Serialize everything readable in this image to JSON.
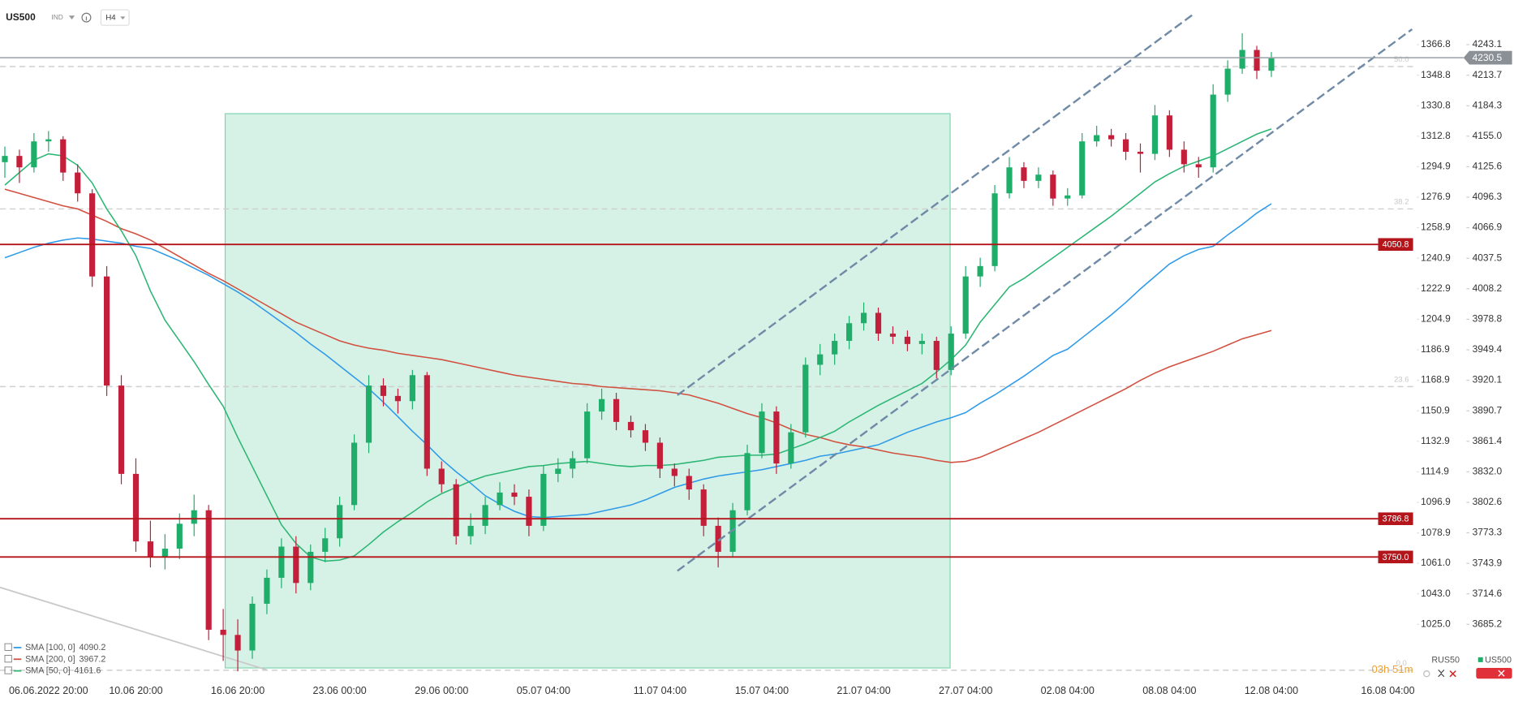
{
  "header": {
    "symbol": "US500",
    "market": "IND",
    "timeframe": "H4"
  },
  "chart_data": {
    "type": "candlestick",
    "categories": [
      null,
      null,
      null,
      "06.06.2022 20:00",
      null,
      null,
      null,
      null,
      null,
      "10.06 20:00",
      null,
      null,
      null,
      null,
      null,
      null,
      "16.06 20:00",
      null,
      null,
      null,
      null,
      null,
      null,
      "23.06 00:00",
      null,
      null,
      null,
      null,
      null,
      null,
      "29.06 00:00",
      null,
      null,
      null,
      null,
      null,
      null,
      "05.07 04:00",
      null,
      null,
      null,
      null,
      null,
      null,
      null,
      "11.07 04:00",
      null,
      null,
      null,
      null,
      null,
      null,
      "15.07 04:00",
      null,
      null,
      null,
      null,
      null,
      null,
      "21.07 04:00",
      null,
      null,
      null,
      null,
      null,
      null,
      "27.07 04:00",
      null,
      null,
      null,
      null,
      null,
      null,
      "02.08 04:00",
      null,
      null,
      null,
      null,
      null,
      null,
      "08.08 04:00",
      null,
      null,
      null,
      null,
      null,
      null,
      "12.08 04:00",
      null,
      null,
      null,
      null,
      null,
      null,
      null,
      "16.08 04:00"
    ],
    "candles": [
      [
        4130,
        4145,
        4115,
        4136
      ],
      [
        4136,
        4142,
        4110,
        4125
      ],
      [
        4125,
        4158,
        4120,
        4150
      ],
      [
        4150,
        4160,
        4140,
        4152
      ],
      [
        4152,
        4155,
        4112,
        4120
      ],
      [
        4120,
        4128,
        4092,
        4100
      ],
      [
        4100,
        4104,
        4010,
        4020
      ],
      [
        4020,
        4030,
        3905,
        3915
      ],
      [
        3915,
        3925,
        3820,
        3830
      ],
      [
        3830,
        3845,
        3755,
        3765
      ],
      [
        3765,
        3785,
        3740,
        3750
      ],
      [
        3750,
        3772,
        3738,
        3758
      ],
      [
        3758,
        3792,
        3748,
        3782
      ],
      [
        3782,
        3810,
        3770,
        3795
      ],
      [
        3795,
        3800,
        3670,
        3680
      ],
      [
        3680,
        3700,
        3650,
        3675
      ],
      [
        3675,
        3690,
        3640,
        3660
      ],
      [
        3660,
        3712,
        3652,
        3705
      ],
      [
        3705,
        3738,
        3695,
        3730
      ],
      [
        3730,
        3768,
        3720,
        3760
      ],
      [
        3760,
        3770,
        3715,
        3725
      ],
      [
        3725,
        3762,
        3718,
        3755
      ],
      [
        3755,
        3778,
        3745,
        3768
      ],
      [
        3768,
        3808,
        3760,
        3800
      ],
      [
        3800,
        3868,
        3795,
        3860
      ],
      [
        3860,
        3925,
        3850,
        3915
      ],
      [
        3915,
        3922,
        3895,
        3905
      ],
      [
        3905,
        3912,
        3888,
        3900
      ],
      [
        3900,
        3930,
        3892,
        3925
      ],
      [
        3925,
        3928,
        3828,
        3835
      ],
      [
        3835,
        3842,
        3812,
        3820
      ],
      [
        3820,
        3825,
        3762,
        3770
      ],
      [
        3770,
        3792,
        3762,
        3780
      ],
      [
        3780,
        3808,
        3772,
        3800
      ],
      [
        3800,
        3822,
        3795,
        3812
      ],
      [
        3812,
        3820,
        3800,
        3808
      ],
      [
        3808,
        3815,
        3770,
        3780
      ],
      [
        3780,
        3838,
        3775,
        3830
      ],
      [
        3830,
        3845,
        3822,
        3835
      ],
      [
        3835,
        3852,
        3826,
        3845
      ],
      [
        3845,
        3898,
        3840,
        3890
      ],
      [
        3890,
        3912,
        3882,
        3902
      ],
      [
        3902,
        3908,
        3872,
        3880
      ],
      [
        3880,
        3886,
        3865,
        3872
      ],
      [
        3872,
        3878,
        3852,
        3860
      ],
      [
        3860,
        3865,
        3826,
        3835
      ],
      [
        3835,
        3840,
        3818,
        3828
      ],
      [
        3828,
        3835,
        3805,
        3815
      ],
      [
        3815,
        3820,
        3770,
        3780
      ],
      [
        3780,
        3788,
        3740,
        3755
      ],
      [
        3755,
        3802,
        3750,
        3795
      ],
      [
        3795,
        3858,
        3790,
        3850
      ],
      [
        3850,
        3898,
        3845,
        3890
      ],
      [
        3890,
        3895,
        3830,
        3840
      ],
      [
        3840,
        3878,
        3835,
        3870
      ],
      [
        3870,
        3942,
        3865,
        3935
      ],
      [
        3935,
        3955,
        3925,
        3945
      ],
      [
        3945,
        3965,
        3935,
        3958
      ],
      [
        3958,
        3982,
        3950,
        3975
      ],
      [
        3975,
        3995,
        3968,
        3985
      ],
      [
        3985,
        3990,
        3958,
        3965
      ],
      [
        3965,
        3972,
        3955,
        3962
      ],
      [
        3962,
        3968,
        3948,
        3955
      ],
      [
        3955,
        3965,
        3945,
        3958
      ],
      [
        3958,
        3962,
        3922,
        3930
      ],
      [
        3930,
        3972,
        3925,
        3965
      ],
      [
        3965,
        4030,
        3960,
        4020
      ],
      [
        4020,
        4038,
        4010,
        4030
      ],
      [
        4030,
        4108,
        4025,
        4100
      ],
      [
        4100,
        4135,
        4095,
        4125
      ],
      [
        4125,
        4130,
        4105,
        4112
      ],
      [
        4112,
        4125,
        4105,
        4118
      ],
      [
        4118,
        4122,
        4088,
        4095
      ],
      [
        4095,
        4105,
        4088,
        4098
      ],
      [
        4098,
        4158,
        4095,
        4150
      ],
      [
        4150,
        4165,
        4145,
        4156
      ],
      [
        4156,
        4162,
        4145,
        4152
      ],
      [
        4152,
        4158,
        4132,
        4140
      ],
      [
        4140,
        4148,
        4120,
        4138
      ],
      [
        4138,
        4185,
        4132,
        4175
      ],
      [
        4175,
        4180,
        4135,
        4142
      ],
      [
        4142,
        4150,
        4120,
        4128
      ],
      [
        4128,
        4135,
        4115,
        4125
      ],
      [
        4125,
        4205,
        4120,
        4195
      ],
      [
        4195,
        4228,
        4188,
        4220
      ],
      [
        4220,
        4254,
        4215,
        4238
      ],
      [
        4238,
        4242,
        4210,
        4218
      ],
      [
        4218,
        4236,
        4212,
        4230
      ],
      null,
      null,
      null,
      null,
      null,
      null,
      null,
      null
    ],
    "up_color": "#1eae6a",
    "down_color": "#c41f3a",
    "ylim": [
      3632,
      4286
    ],
    "yticks": [
      4243.1,
      4213.7,
      4184.3,
      {
        "value": 4155,
        "label": "4155.0"
      },
      4125.6,
      4096.3,
      4066.9,
      4037.5,
      4008.2,
      3978.8,
      3949.4,
      3920.1,
      3890.7,
      3861.4,
      {
        "value": 3832,
        "label": "3832.0"
      },
      3802.6,
      3773.3,
      3743.9,
      3714.6,
      3685.2
    ],
    "y2lim": [
      992.4,
      1393.1
    ],
    "y2ticks": [
      1366.8,
      1348.8,
      1330.8,
      1312.8,
      1294.9,
      1276.9,
      1258.9,
      1240.9,
      1222.9,
      1204.9,
      1186.9,
      1168.9,
      1150.9,
      1132.9,
      1114.9,
      1096.9,
      1078.9,
      {
        "value": 1061,
        "label": "1061.0"
      },
      {
        "value": 1043,
        "label": "1043.0"
      },
      {
        "value": 1025,
        "label": "1025.0"
      }
    ],
    "grid": false,
    "series": [
      {
        "name": "SMA [100, 0]",
        "color": "#2f9be8",
        "last": 4090.2,
        "values": [
          4038,
          4043,
          4048,
          4052,
          4055,
          4057,
          4056,
          4054,
          4052,
          4049,
          4047,
          4041,
          4035,
          4028,
          4021,
          4013,
          4005,
          3996,
          3986,
          3976,
          3966,
          3955,
          3945,
          3934,
          3923,
          3912,
          3899,
          3885,
          3871,
          3858,
          3844,
          3832,
          3821,
          3809,
          3801,
          3794,
          3789,
          3788,
          3789,
          3790,
          3791,
          3794,
          3797,
          3800,
          3805,
          3811,
          3817,
          3821,
          3825,
          3828,
          3830,
          3832,
          3834,
          3837,
          3840,
          3843,
          3847,
          3849,
          3852,
          3855,
          3858,
          3864,
          3870,
          3875,
          3880,
          3884,
          3889,
          3898,
          3906,
          3915,
          3924,
          3934,
          3944,
          3950,
          3961,
          3972,
          3983,
          3995,
          4008,
          4020,
          4032,
          4040,
          4046,
          4049,
          4060,
          4070,
          4081,
          4090,
          null,
          null,
          null,
          null,
          null,
          null,
          null,
          null
        ]
      },
      {
        "name": "SMA [200, 0]",
        "color": "#d2503f",
        "last": 3967.2,
        "values": [
          4104,
          4100,
          4096,
          4092,
          4088,
          4085,
          4079,
          4073,
          4066,
          4061,
          4055,
          4047,
          4039,
          4031,
          4023,
          4016,
          4008,
          4000,
          3992,
          3984,
          3976,
          3970,
          3964,
          3958,
          3954,
          3951,
          3949,
          3946,
          3944,
          3942,
          3940,
          3937,
          3934,
          3931,
          3928,
          3925,
          3923,
          3921,
          3919,
          3917,
          3916,
          3914,
          3913,
          3912,
          3911,
          3910,
          3908,
          3906,
          3902,
          3898,
          3893,
          3888,
          3884,
          3879,
          3873,
          3868,
          3865,
          3861,
          3858,
          3856,
          3853,
          3850,
          3848,
          3846,
          3843,
          3841,
          3842,
          3846,
          3852,
          3858,
          3864,
          3870,
          3877,
          3884,
          3891,
          3898,
          3905,
          3912,
          3920,
          3927,
          3933,
          3938,
          3943,
          3948,
          3954,
          3960,
          3964,
          3968,
          null,
          null,
          null,
          null,
          null,
          null,
          null,
          null
        ]
      },
      {
        "name": "SMA [50, 0]",
        "color": "#2bb673",
        "last": 4161.6,
        "values": [
          4108,
          4120,
          4132,
          4138,
          4136,
          4127,
          4110,
          4085,
          4064,
          4040,
          4006,
          3978,
          3958,
          3938,
          3916,
          3895,
          3865,
          3837,
          3809,
          3781,
          3763,
          3750,
          3746,
          3747,
          3751,
          3762,
          3774,
          3784,
          3793,
          3803,
          3811,
          3817,
          3823,
          3828,
          3831,
          3834,
          3837,
          3838,
          3840,
          3841,
          3842,
          3840,
          3838,
          3837,
          3838,
          3838,
          3839,
          3841,
          3843,
          3846,
          3847,
          3848,
          3848,
          3849,
          3854,
          3859,
          3865,
          3871,
          3880,
          3888,
          3896,
          3903,
          3910,
          3917,
          3928,
          3940,
          3954,
          3976,
          3993,
          4010,
          4018,
          4028,
          4038,
          4048,
          4058,
          4068,
          4078,
          4089,
          4100,
          4111,
          4119,
          4126,
          4131,
          4136,
          4143,
          4150,
          4157,
          4162,
          null,
          null,
          null,
          null,
          null,
          null,
          null,
          null
        ]
      }
    ],
    "levels": {
      "color": "#b3151b",
      "values": [
        4050.8,
        3786.8,
        3750
      ],
      "value_labels": [
        "4050.8",
        "3786.8",
        "3750.0"
      ]
    },
    "fib_levels": [
      {
        "ratio": "50.0",
        "price": 4222
      },
      {
        "ratio": "38.2",
        "price": 4085
      },
      {
        "ratio": "23.6",
        "price": 3914
      },
      {
        "ratio": "0.0",
        "price": 3641
      }
    ],
    "last_price": 4230.5,
    "instruments": [
      "RUS50",
      "US500"
    ],
    "countdown": "03h 51m"
  }
}
